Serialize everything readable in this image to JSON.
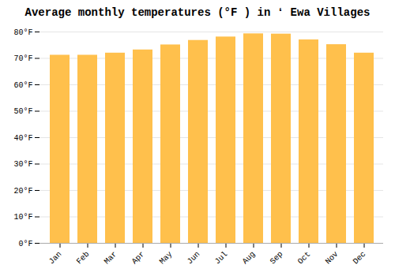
{
  "chart_data": {
    "type": "bar",
    "title": "Average monthly temperatures (°F ) in ʻ Ewa Villages",
    "categories": [
      "Jan",
      "Feb",
      "Mar",
      "Apr",
      "May",
      "Jun",
      "Jul",
      "Aug",
      "Sep",
      "Oct",
      "Nov",
      "Dec"
    ],
    "values": [
      71.2,
      71.2,
      72.0,
      73.2,
      75.1,
      76.8,
      78.1,
      79.3,
      79.2,
      77.0,
      75.2,
      72.0
    ],
    "color": "#FFC04C",
    "ylim": [
      0,
      80
    ],
    "yticks": [
      {
        "value": 0,
        "label": "0°F"
      },
      {
        "value": 10,
        "label": "10°F"
      },
      {
        "value": 20,
        "label": "20°F"
      },
      {
        "value": 30,
        "label": "30°F"
      },
      {
        "value": 40,
        "label": "40°F"
      },
      {
        "value": 50,
        "label": "50°F"
      },
      {
        "value": 60,
        "label": "60°F"
      },
      {
        "value": 70,
        "label": "70°F"
      },
      {
        "value": 80,
        "label": "80°F"
      }
    ],
    "grid": true
  }
}
